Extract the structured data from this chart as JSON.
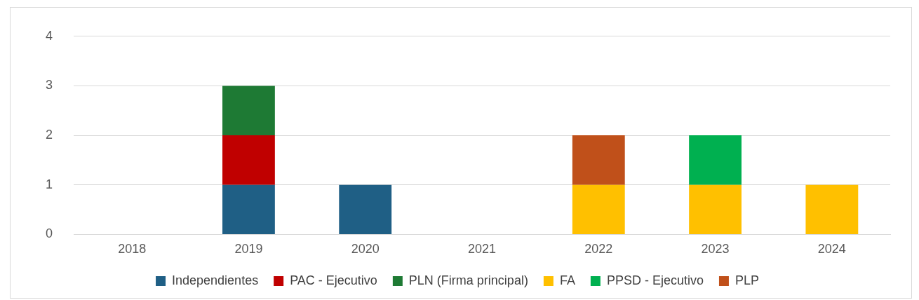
{
  "chart_data": {
    "type": "bar",
    "stacked": true,
    "categories": [
      "2018",
      "2019",
      "2020",
      "2021",
      "2022",
      "2023",
      "2024"
    ],
    "series": [
      {
        "name": "Independientes",
        "color": "#1f5f85",
        "values": [
          0,
          1,
          1,
          0,
          0,
          0,
          0
        ]
      },
      {
        "name": "PAC - Ejecutivo",
        "color": "#c00000",
        "values": [
          0,
          1,
          0,
          0,
          0,
          0,
          0
        ]
      },
      {
        "name": "PLN (Firma principal)",
        "color": "#1e7a34",
        "values": [
          0,
          1,
          0,
          0,
          0,
          0,
          0
        ]
      },
      {
        "name": "FA",
        "color": "#ffc000",
        "values": [
          0,
          0,
          0,
          0,
          1,
          1,
          1
        ]
      },
      {
        "name": "PPSD - Ejecutivo",
        "color": "#00b050",
        "values": [
          0,
          0,
          0,
          0,
          0,
          1,
          0
        ]
      },
      {
        "name": "PLP",
        "color": "#c0501a",
        "values": [
          0,
          0,
          0,
          0,
          1,
          0,
          0
        ]
      }
    ],
    "ylim": [
      0,
      4
    ],
    "yticks": [
      0,
      1,
      2,
      3,
      4
    ],
    "grid": "y",
    "legend": "bottom"
  }
}
